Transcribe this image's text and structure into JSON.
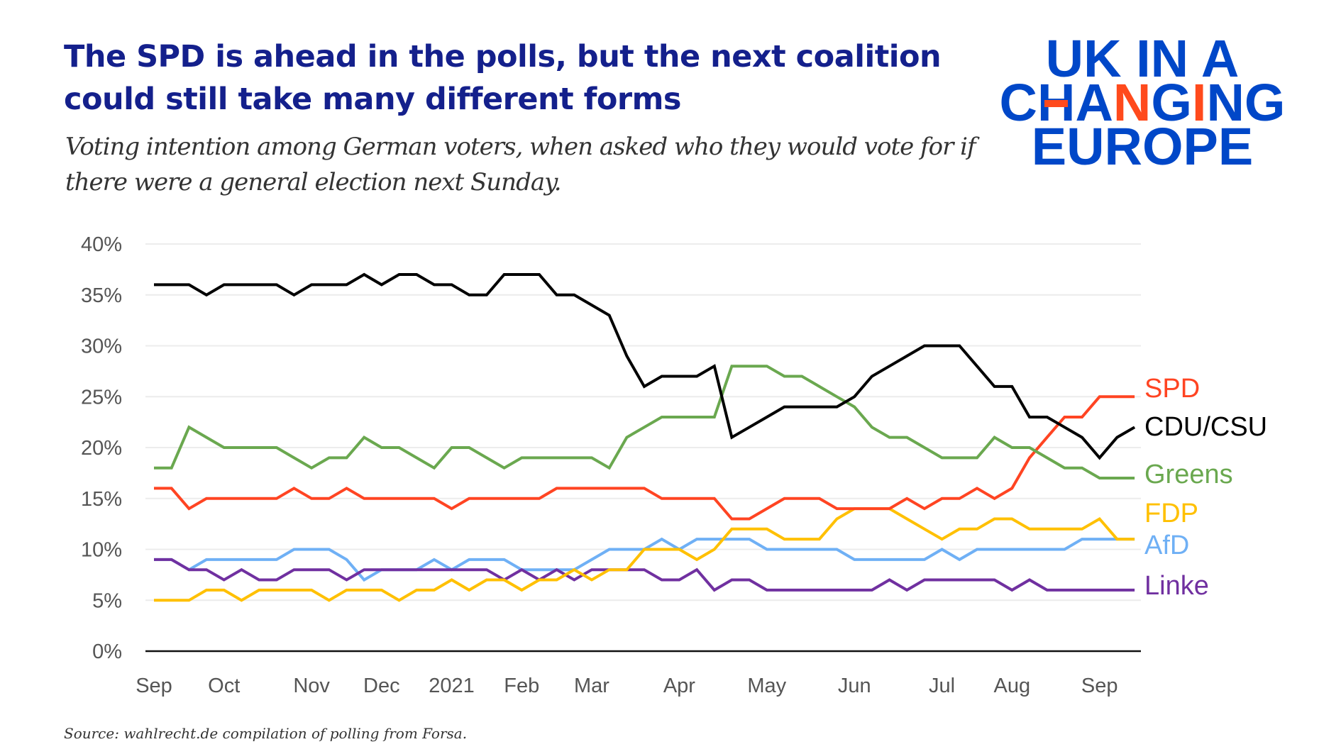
{
  "header": {
    "title": "The SPD is ahead in the polls, but the next coalition could still take many different forms",
    "subtitle": "Voting intention among German voters, when asked who they would vote for if there were a general election next Sunday.",
    "logo_text": "UK IN A CHANGING EUROPE",
    "logo_colors": {
      "blue": "#0047c8",
      "red": "#ff4a1c"
    }
  },
  "footer": {
    "source": "Source: wahlrecht.de compilation of polling from Forsa."
  },
  "chart_data": {
    "type": "line",
    "title": "",
    "xlabel": "",
    "ylabel": "",
    "ylim": [
      0,
      40
    ],
    "y_ticks": [
      "0%",
      "5%",
      "10%",
      "15%",
      "20%",
      "25%",
      "30%",
      "35%",
      "40%"
    ],
    "y_tick_values": [
      0,
      5,
      10,
      15,
      20,
      25,
      30,
      35,
      40
    ],
    "grid": "horizontal",
    "legend": "direct labels at right end of lines",
    "x_ticks": [
      {
        "label": "Sep",
        "poll": 0
      },
      {
        "label": "Oct",
        "poll": 4
      },
      {
        "label": "Nov",
        "poll": 9
      },
      {
        "label": "Dec",
        "poll": 13
      },
      {
        "label": "2021",
        "poll": 17
      },
      {
        "label": "Feb",
        "poll": 21
      },
      {
        "label": "Mar",
        "poll": 25
      },
      {
        "label": "Apr",
        "poll": 30
      },
      {
        "label": "May",
        "poll": 35
      },
      {
        "label": "Jun",
        "poll": 40
      },
      {
        "label": "Jul",
        "poll": 45
      },
      {
        "label": "Aug",
        "poll": 49
      },
      {
        "label": "Sep",
        "poll": 54
      }
    ],
    "series": [
      {
        "name": "SPD",
        "color": "#ff4422",
        "values": [
          16,
          16,
          14,
          15,
          15,
          15,
          15,
          15,
          16,
          15,
          15,
          16,
          15,
          15,
          15,
          15,
          15,
          14,
          15,
          15,
          15,
          15,
          15,
          16,
          16,
          16,
          16,
          16,
          16,
          15,
          15,
          15,
          15,
          13,
          13,
          14,
          15,
          15,
          15,
          14,
          14,
          14,
          14,
          15,
          14,
          15,
          15,
          16,
          15,
          16,
          19,
          21,
          23,
          23,
          25,
          25,
          25
        ]
      },
      {
        "name": "CDU/CSU",
        "color": "#000000",
        "values": [
          36,
          36,
          36,
          35,
          36,
          36,
          36,
          36,
          35,
          36,
          36,
          36,
          37,
          36,
          37,
          37,
          36,
          36,
          35,
          35,
          37,
          37,
          37,
          35,
          35,
          34,
          33,
          29,
          26,
          27,
          27,
          27,
          28,
          21,
          22,
          23,
          24,
          24,
          24,
          24,
          25,
          27,
          28,
          29,
          30,
          30,
          30,
          28,
          26,
          26,
          23,
          23,
          22,
          21,
          19,
          21,
          22
        ]
      },
      {
        "name": "Greens",
        "color": "#6aa84f",
        "values": [
          18,
          18,
          22,
          21,
          20,
          20,
          20,
          20,
          19,
          18,
          19,
          19,
          21,
          20,
          20,
          19,
          18,
          20,
          20,
          19,
          18,
          19,
          19,
          19,
          19,
          19,
          18,
          21,
          22,
          23,
          23,
          23,
          23,
          28,
          28,
          28,
          27,
          27,
          26,
          25,
          24,
          22,
          21,
          21,
          20,
          19,
          19,
          19,
          21,
          20,
          20,
          19,
          18,
          18,
          17,
          17,
          17
        ]
      },
      {
        "name": "FDP",
        "color": "#ffc000",
        "values": [
          5,
          5,
          5,
          6,
          6,
          5,
          6,
          6,
          6,
          6,
          5,
          6,
          6,
          6,
          5,
          6,
          6,
          7,
          6,
          7,
          7,
          6,
          7,
          7,
          8,
          7,
          8,
          8,
          10,
          10,
          10,
          9,
          10,
          12,
          12,
          12,
          11,
          11,
          11,
          13,
          14,
          14,
          14,
          13,
          12,
          11,
          12,
          12,
          13,
          13,
          12,
          12,
          12,
          12,
          13,
          11,
          11
        ]
      },
      {
        "name": "AfD",
        "color": "#6fb0f5",
        "values": [
          9,
          9,
          8,
          9,
          9,
          9,
          9,
          9,
          10,
          10,
          10,
          9,
          7,
          8,
          8,
          8,
          9,
          8,
          9,
          9,
          9,
          8,
          8,
          8,
          8,
          9,
          10,
          10,
          10,
          11,
          10,
          11,
          11,
          11,
          11,
          10,
          10,
          10,
          10,
          10,
          9,
          9,
          9,
          9,
          9,
          10,
          9,
          10,
          10,
          10,
          10,
          10,
          10,
          11,
          11,
          11,
          11
        ]
      },
      {
        "name": "Linke",
        "color": "#7030a0",
        "values": [
          9,
          9,
          8,
          8,
          7,
          8,
          7,
          7,
          8,
          8,
          8,
          7,
          8,
          8,
          8,
          8,
          8,
          8,
          8,
          8,
          7,
          8,
          7,
          8,
          7,
          8,
          8,
          8,
          8,
          7,
          7,
          8,
          6,
          7,
          7,
          6,
          6,
          6,
          6,
          6,
          6,
          6,
          7,
          6,
          7,
          7,
          7,
          7,
          7,
          6,
          7,
          6,
          6,
          6,
          6,
          6,
          6
        ]
      }
    ]
  }
}
